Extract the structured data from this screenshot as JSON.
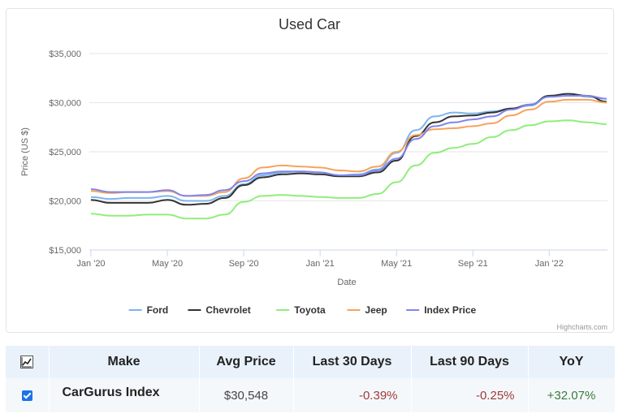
{
  "chart_data": {
    "type": "line",
    "title": "Used Car",
    "xlabel": "Date",
    "ylabel": "Price (US $)",
    "ylim": [
      15000,
      35000
    ],
    "yticks": [
      15000,
      20000,
      25000,
      30000,
      35000
    ],
    "ytick_labels": [
      "$15,000",
      "$20,000",
      "$25,000",
      "$30,000",
      "$35,000"
    ],
    "xticks": [
      0,
      4,
      8,
      12,
      16,
      20,
      24
    ],
    "xtick_labels": [
      "Jan '20",
      "May '20",
      "Sep '20",
      "Jan '21",
      "May '21",
      "Sep '21",
      "Jan '22"
    ],
    "x": [
      0,
      1,
      2,
      3,
      4,
      5,
      6,
      7,
      8,
      9,
      10,
      11,
      12,
      13,
      14,
      15,
      16,
      17,
      18,
      19,
      20,
      21,
      22,
      23,
      24,
      25,
      26,
      27
    ],
    "legend_position": "bottom",
    "credits": "Highcharts.com",
    "series": [
      {
        "name": "Ford",
        "color": "#7cb5ec",
        "values": [
          20400,
          20200,
          20300,
          20300,
          20500,
          20000,
          20000,
          20500,
          21700,
          22600,
          22900,
          23000,
          22900,
          22600,
          22700,
          23200,
          24900,
          27200,
          28600,
          29000,
          28900,
          29100,
          29400,
          29700,
          30700,
          30900,
          30600,
          30400
        ]
      },
      {
        "name": "Chevrolet",
        "color": "#333333",
        "values": [
          20100,
          19800,
          19800,
          19800,
          20100,
          19600,
          19700,
          20300,
          21600,
          22400,
          22700,
          22800,
          22700,
          22500,
          22500,
          22900,
          24100,
          26600,
          28000,
          28600,
          28700,
          29000,
          29400,
          29800,
          30700,
          30900,
          30700,
          30100
        ]
      },
      {
        "name": "Toyota",
        "color": "#90ed7d",
        "values": [
          18700,
          18500,
          18500,
          18600,
          18600,
          18200,
          18200,
          18600,
          19900,
          20500,
          20600,
          20500,
          20400,
          20300,
          20300,
          20700,
          21900,
          23600,
          24900,
          25400,
          25800,
          26500,
          27200,
          27700,
          28100,
          28200,
          28000,
          27800
        ]
      },
      {
        "name": "Jeep",
        "color": "#f7a35c",
        "values": [
          21000,
          20800,
          20900,
          20900,
          21000,
          20500,
          20500,
          20900,
          22300,
          23400,
          23600,
          23500,
          23400,
          23100,
          23000,
          23500,
          25000,
          26700,
          27300,
          27400,
          27600,
          27900,
          28700,
          29300,
          30100,
          30300,
          30300,
          30000
        ]
      },
      {
        "name": "Index Price",
        "color": "#8085e9",
        "values": [
          21200,
          20900,
          20900,
          20900,
          21100,
          20500,
          20600,
          21100,
          22000,
          22800,
          23000,
          23000,
          22900,
          22600,
          22600,
          23100,
          24300,
          26300,
          27600,
          28000,
          28300,
          28600,
          29300,
          29800,
          30600,
          30700,
          30700,
          30400
        ]
      }
    ]
  },
  "table": {
    "headers": {
      "make": "Make",
      "avg_price": "Avg Price",
      "last30": "Last 30 Days",
      "last90": "Last 90 Days",
      "yoy": "YoY"
    },
    "toggle_icon": "chart-icon",
    "rows": [
      {
        "checked": true,
        "make": "CarGurus Index",
        "avg_price": "$30,548",
        "last30": "-0.39%",
        "last90": "-0.25%",
        "yoy": "+32.07%"
      }
    ]
  }
}
